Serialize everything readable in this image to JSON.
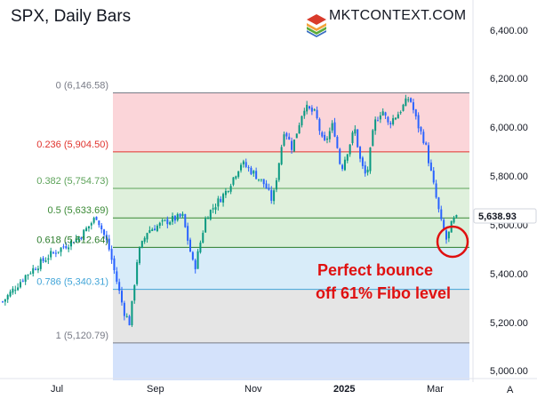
{
  "chart_data": {
    "type": "candlestick",
    "title": "SPX, Daily Bars",
    "logo_text": "MKTCONTEXT.COM",
    "y_axis": {
      "ticks": [
        "6,400.00",
        "6,200.00",
        "6,000.00",
        "5,800.00",
        "5,600.00",
        "5,400.00",
        "5,200.00",
        "5,000.00"
      ],
      "tick_values": [
        6400,
        6200,
        6000,
        5800,
        5600,
        5400,
        5200,
        5000
      ],
      "ylim": [
        4985,
        6475
      ],
      "position": "right"
    },
    "x_axis": {
      "ticks": [
        "Jul",
        "Sep",
        "Nov",
        "2025",
        "Mar"
      ],
      "bold_ticks": [
        "2025"
      ]
    },
    "last_price": {
      "label": "5,638.93",
      "value": 5638.93
    },
    "corner_label": "A",
    "fibonacci": {
      "levels": [
        {
          "label": "0 (6,146.58)",
          "value": 6146.58,
          "color": "#787b86"
        },
        {
          "label": "0.236 (5,904.50)",
          "value": 5904.5,
          "color": "#e0332d"
        },
        {
          "label": "0.382 (5,754.73)",
          "value": 5754.73,
          "color": "#5da35a"
        },
        {
          "label": "0.5 (5,633.69)",
          "value": 5633.69,
          "color": "#3a8a35"
        },
        {
          "label": "0.618 (5,512.64)",
          "value": 5512.64,
          "color": "#2b7c2b"
        },
        {
          "label": "0.786 (5,340.31)",
          "value": 5340.31,
          "color": "#42a5d8"
        },
        {
          "label": "1 (5,120.79)",
          "value": 5120.79,
          "color": "#787b86"
        }
      ],
      "zone_colors": [
        "#fbd5d9",
        "#dff0dc",
        "#dff0dc",
        "#d9efd9",
        "#d8ecf9",
        "#e5e5e5",
        "#d4e2fb"
      ]
    },
    "candle_colors": {
      "up": "#089981",
      "down": "#2962ff"
    },
    "series": [
      {
        "name": "SPX",
        "anchors": [
          {
            "t": 0.0,
            "v": 5290
          },
          {
            "t": 0.06,
            "v": 5400
          },
          {
            "t": 0.12,
            "v": 5480
          },
          {
            "t": 0.2,
            "v": 5560
          },
          {
            "t": 0.24,
            "v": 5640
          },
          {
            "t": 0.27,
            "v": 5520
          },
          {
            "t": 0.31,
            "v": 5250
          },
          {
            "t": 0.325,
            "v": 5200
          },
          {
            "t": 0.345,
            "v": 5480
          },
          {
            "t": 0.37,
            "v": 5580
          },
          {
            "t": 0.42,
            "v": 5620
          },
          {
            "t": 0.46,
            "v": 5640
          },
          {
            "t": 0.49,
            "v": 5420
          },
          {
            "t": 0.52,
            "v": 5640
          },
          {
            "t": 0.57,
            "v": 5740
          },
          {
            "t": 0.61,
            "v": 5860
          },
          {
            "t": 0.64,
            "v": 5820
          },
          {
            "t": 0.67,
            "v": 5770
          },
          {
            "t": 0.69,
            "v": 5700
          },
          {
            "t": 0.72,
            "v": 6000
          },
          {
            "t": 0.74,
            "v": 5920
          },
          {
            "t": 0.77,
            "v": 6090
          },
          {
            "t": 0.8,
            "v": 6060
          },
          {
            "t": 0.82,
            "v": 5930
          },
          {
            "t": 0.845,
            "v": 6020
          },
          {
            "t": 0.865,
            "v": 5830
          },
          {
            "t": 0.9,
            "v": 6000
          },
          {
            "t": 0.915,
            "v": 5860
          },
          {
            "t": 0.93,
            "v": 5800
          },
          {
            "t": 0.95,
            "v": 6020
          },
          {
            "t": 0.97,
            "v": 6080
          },
          {
            "t": 0.985,
            "v": 6020
          },
          {
            "t": 1.01,
            "v": 6060
          },
          {
            "t": 1.04,
            "v": 6130
          },
          {
            "t": 1.06,
            "v": 6020
          },
          {
            "t": 1.08,
            "v": 5940
          },
          {
            "t": 1.1,
            "v": 5780
          },
          {
            "t": 1.12,
            "v": 5620
          },
          {
            "t": 1.135,
            "v": 5540
          },
          {
            "t": 1.15,
            "v": 5620
          },
          {
            "t": 1.16,
            "v": 5630
          }
        ]
      }
    ],
    "annotation": {
      "line1": "Perfect bounce",
      "line2": "off 61% Fibo level"
    }
  }
}
